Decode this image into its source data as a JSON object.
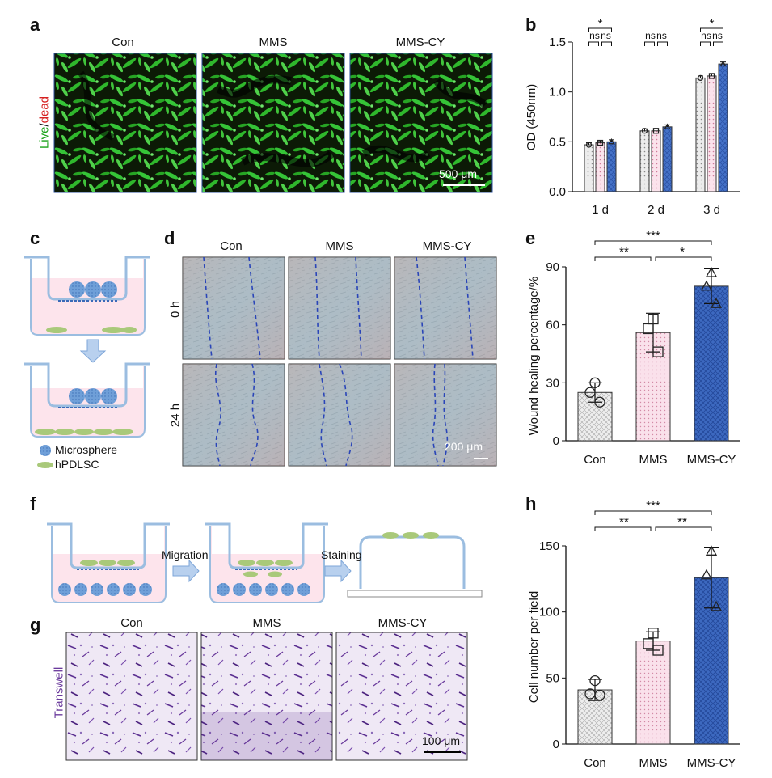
{
  "panels": {
    "a": "a",
    "b": "b",
    "c": "c",
    "d": "d",
    "e": "e",
    "f": "f",
    "g": "g",
    "h": "h"
  },
  "groups": [
    "Con",
    "MMS",
    "MMS-CY"
  ],
  "panel_a": {
    "ylabel_live": "Live",
    "ylabel_sep": "/",
    "ylabel_dead": "dead",
    "scalebar": "500 μm"
  },
  "panel_c": {
    "legend_microsphere": "Microsphere",
    "legend_hpdlsc": "hPDLSC"
  },
  "panel_d": {
    "row_0h": "0 h",
    "row_24h": "24 h",
    "scalebar": "200 μm"
  },
  "panel_f": {
    "migration": "Migration",
    "staining": "Staining"
  },
  "panel_g": {
    "ylabel": "Transwell",
    "scalebar": "100 μm"
  },
  "colors": {
    "con": "#e6e6e6",
    "mms": "#f7d9e4",
    "mmscy": "#3f6cc4",
    "live": "#1aa31a",
    "dead": "#d62020",
    "transwell": "#6a3a9c"
  },
  "chart_data": [
    {
      "id": "b",
      "type": "bar",
      "ylabel": "OD (450nm)",
      "categories": [
        "1 d",
        "2 d",
        "3 d"
      ],
      "ylim": [
        0,
        1.5
      ],
      "yticks": [
        "0.0",
        "0.5",
        "1.0",
        "1.5"
      ],
      "series": [
        {
          "values": [
            0.47,
            0.61,
            1.14
          ]
        },
        {
          "values": [
            0.49,
            0.61,
            1.16
          ]
        },
        {
          "values": [
            0.5,
            0.65,
            1.28
          ]
        }
      ],
      "significance": [
        [
          "ns",
          "ns",
          "*"
        ],
        [
          "ns",
          "ns"
        ],
        [
          "ns",
          "ns",
          "*"
        ]
      ]
    },
    {
      "id": "e",
      "type": "bar",
      "ylabel": "Wound healing percentage/%",
      "categories": [
        "Con",
        "MMS",
        "MMS-CY"
      ],
      "ylim": [
        0,
        90
      ],
      "yticks": [
        "0",
        "30",
        "60",
        "90"
      ],
      "values": [
        25,
        56,
        80
      ],
      "errors": [
        5,
        10,
        9
      ],
      "points": [
        [
          30,
          25,
          20
        ],
        [
          63,
          58,
          46
        ],
        [
          87,
          80,
          71
        ]
      ],
      "significance": [
        "**",
        "*",
        "***"
      ]
    },
    {
      "id": "h",
      "type": "bar",
      "ylabel": "Cell number per field",
      "categories": [
        "Con",
        "MMS",
        "MMS-CY"
      ],
      "ylim": [
        0,
        150
      ],
      "yticks": [
        "0",
        "50",
        "100",
        "150"
      ],
      "values": [
        41,
        78,
        126
      ],
      "errors": [
        8,
        7,
        23
      ],
      "points": [
        [
          48,
          38,
          37
        ],
        [
          84,
          76,
          71
        ],
        [
          146,
          128,
          104
        ]
      ],
      "significance": [
        "**",
        "**",
        "***"
      ]
    }
  ]
}
